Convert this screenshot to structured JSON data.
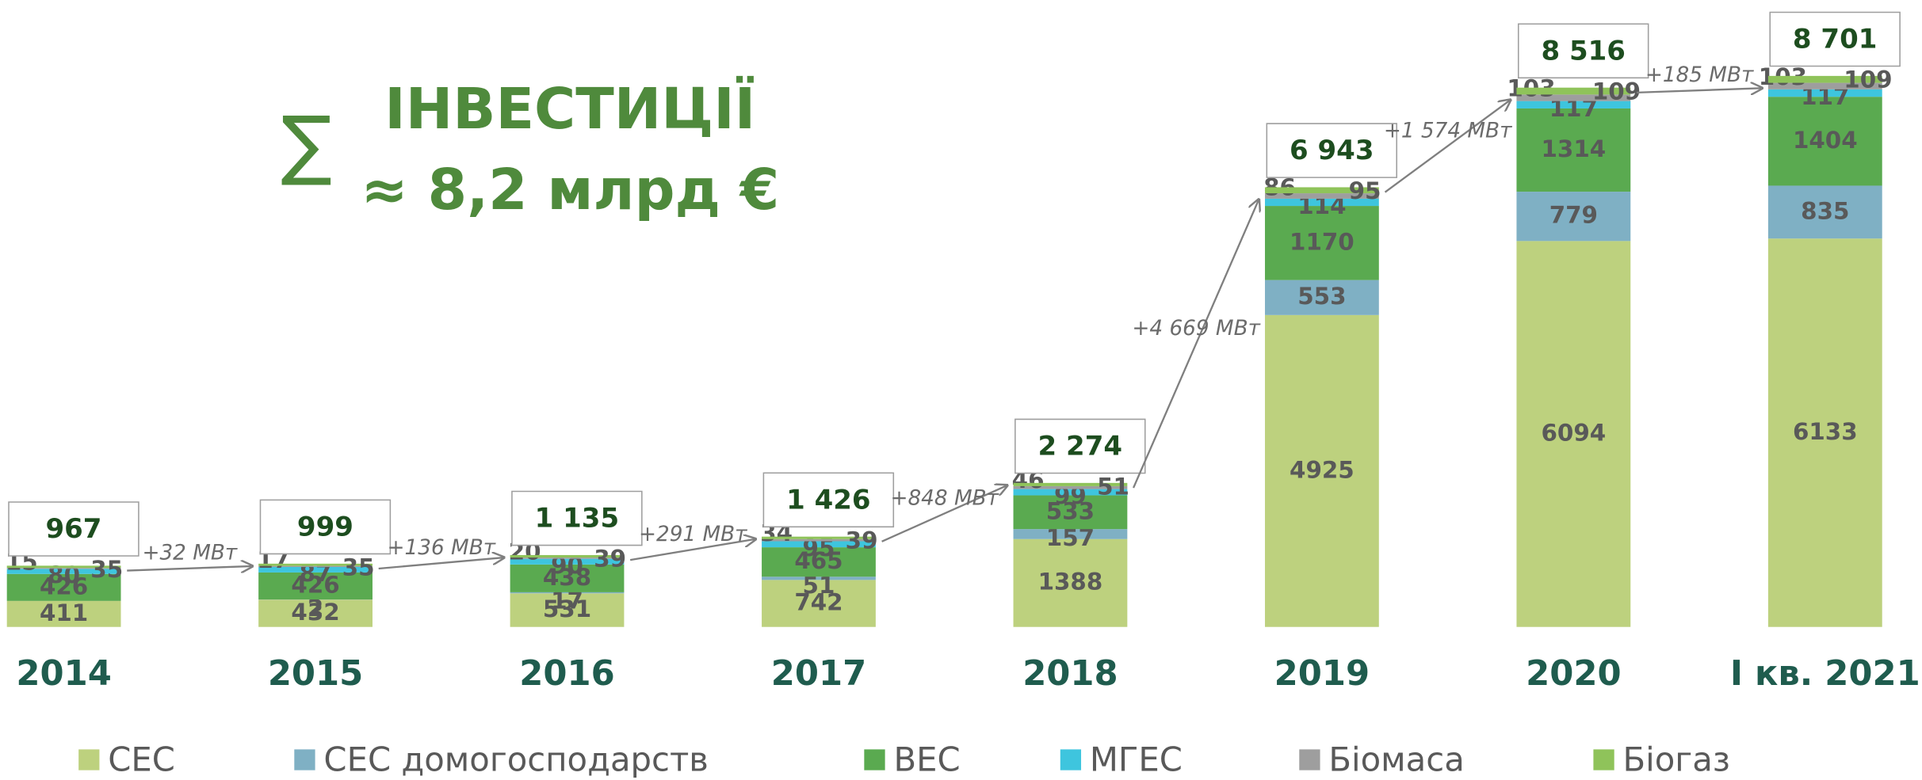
{
  "chart_data": {
    "type": "bar",
    "stacked": true,
    "symbol": "∑",
    "title": "ІНВЕСТИЦІЇ",
    "subtitle": "≈ 8,2 млрд €",
    "categories": [
      "2014",
      "2015",
      "2016",
      "2017",
      "2018",
      "2019",
      "2020",
      "І кв. 2021"
    ],
    "series": [
      {
        "name": "СЕС",
        "color": "#bdd17e",
        "values": [
          411,
          432,
          531,
          742,
          1388,
          4925,
          6094,
          6133
        ]
      },
      {
        "name": "СЕС домогосподарств",
        "color": "#7fb0c4",
        "values": [
          null,
          2,
          17,
          51,
          157,
          553,
          779,
          835
        ]
      },
      {
        "name": "ВЕС",
        "color": "#5aaa50",
        "values": [
          426,
          426,
          438,
          465,
          533,
          1170,
          1314,
          1404
        ]
      },
      {
        "name": "МГЕС",
        "color": "#3ec5de",
        "values": [
          80,
          87,
          90,
          95,
          99,
          114,
          117,
          117
        ]
      },
      {
        "name": "Біомаса",
        "color": "#9e9e9e",
        "values": [
          15,
          17,
          20,
          34,
          46,
          86,
          103,
          103
        ]
      },
      {
        "name": "Біогаз",
        "color": "#8fc35a",
        "values": [
          35,
          35,
          39,
          39,
          51,
          95,
          109,
          109
        ]
      }
    ],
    "totals": [
      967,
      999,
      1135,
      1426,
      2274,
      6943,
      8516,
      8701
    ],
    "totals_value_labels": [
      "967",
      "999",
      "1 135",
      "1 426",
      "2 274",
      "6 943",
      "8 516",
      "8 701"
    ],
    "annotations": [
      "+32 МВт",
      "+136 МВт",
      "+291 МВт",
      "+848 МВт",
      "+4 669 МВт",
      "+1 574 МВт",
      "+185 МВт"
    ]
  }
}
